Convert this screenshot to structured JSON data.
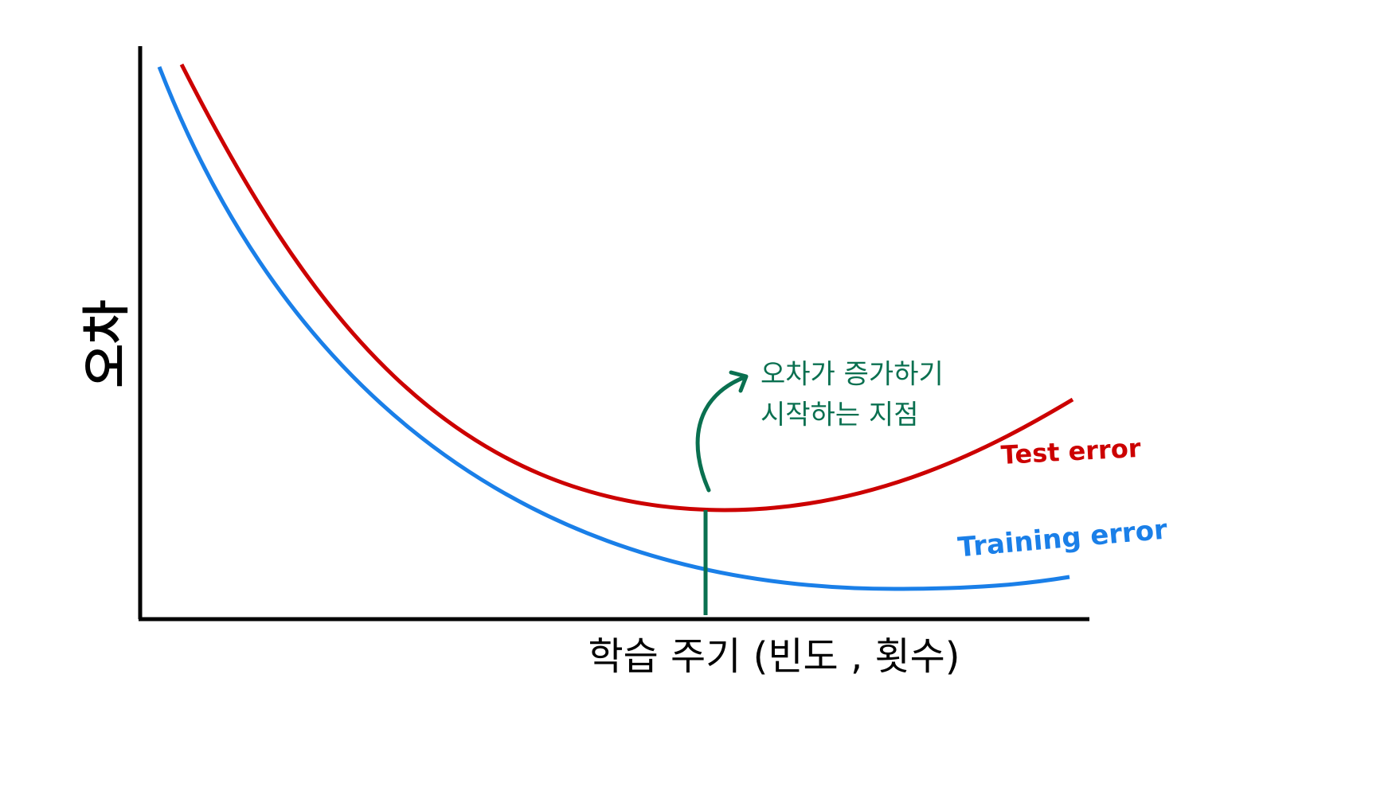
{
  "axes": {
    "y_label": "오차",
    "x_label": "학습 주기 (빈도 , 횟수)"
  },
  "curves": [
    {
      "label": "Test error"
    },
    {
      "label": "Training error"
    }
  ],
  "annotation": {
    "lines": [
      "오차가 증가하기",
      "시작하는 지점"
    ]
  }
}
